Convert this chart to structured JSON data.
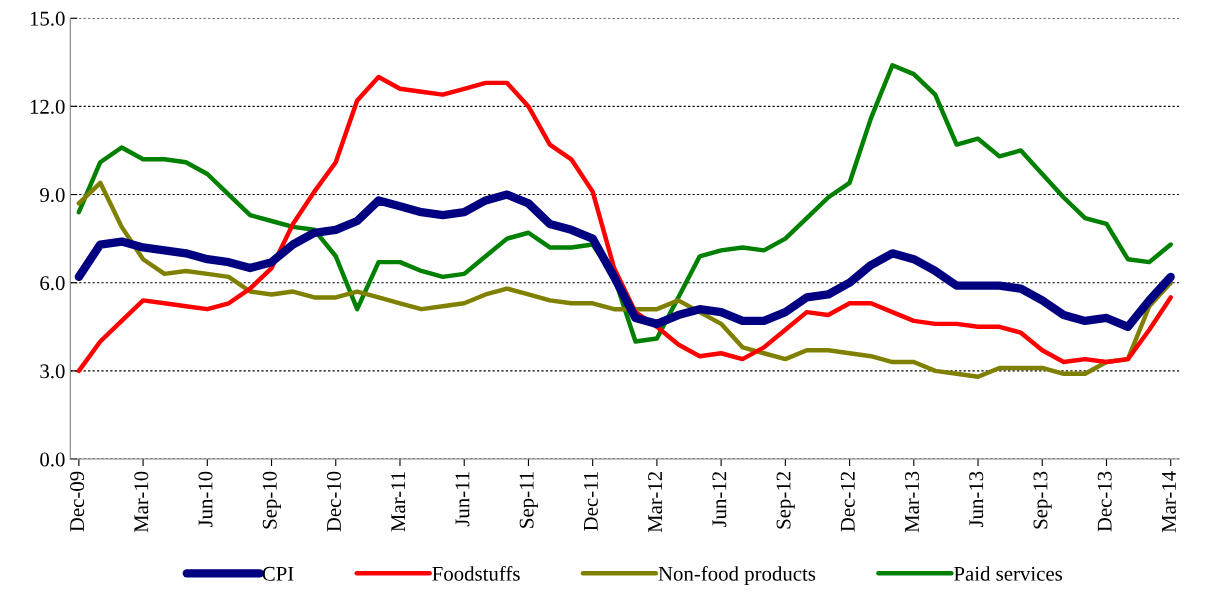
{
  "chart_data": {
    "type": "line",
    "categories": [
      "Dec-09",
      null,
      null,
      "Mar-10",
      null,
      null,
      "Jun-10",
      null,
      null,
      "Sep-10",
      null,
      null,
      "Dec-10",
      null,
      null,
      "Mar-11",
      null,
      null,
      "Jun-11",
      null,
      null,
      "Sep-11",
      null,
      null,
      "Dec-11",
      null,
      null,
      "Mar-12",
      null,
      null,
      "Jun-12",
      null,
      null,
      "Sep-12",
      null,
      null,
      "Dec-12",
      null,
      null,
      "Mar-13",
      null,
      null,
      "Jun-13",
      null,
      null,
      "Sep-13",
      null,
      null,
      "Dec-13",
      null,
      null,
      "Mar-14"
    ],
    "series": [
      {
        "name": "CPI",
        "color": "#000080",
        "values": [
          6.2,
          7.3,
          7.4,
          7.2,
          7.1,
          7.0,
          6.8,
          6.7,
          6.5,
          6.7,
          7.3,
          7.7,
          7.8,
          8.1,
          8.8,
          8.6,
          8.4,
          8.3,
          8.4,
          8.8,
          9.0,
          8.7,
          8.0,
          7.8,
          7.5,
          6.2,
          4.8,
          4.6,
          4.9,
          5.1,
          5.0,
          4.7,
          4.7,
          5.0,
          5.5,
          5.6,
          6.0,
          6.6,
          7.0,
          6.8,
          6.4,
          5.9,
          5.9,
          5.9,
          5.8,
          5.4,
          4.9,
          4.7,
          4.8,
          4.5,
          5.4,
          6.2
        ]
      },
      {
        "name": "Foodstuffs",
        "color": "#ff0000",
        "values": [
          3.0,
          4.0,
          4.7,
          5.4,
          5.3,
          5.2,
          5.1,
          5.3,
          5.8,
          6.5,
          8.0,
          9.1,
          10.1,
          12.2,
          13.0,
          12.6,
          12.5,
          12.4,
          12.6,
          12.8,
          12.8,
          12.0,
          10.7,
          10.2,
          9.1,
          6.5,
          5.0,
          4.5,
          3.9,
          3.5,
          3.6,
          3.4,
          3.8,
          4.4,
          5.0,
          4.9,
          5.3,
          5.3,
          5.0,
          4.7,
          4.6,
          4.6,
          4.5,
          4.5,
          4.3,
          3.7,
          3.3,
          3.4,
          3.3,
          3.4,
          4.4,
          5.5
        ]
      },
      {
        "name": "Non-food products",
        "color": "#808000",
        "values": [
          8.7,
          9.4,
          7.9,
          6.8,
          6.3,
          6.4,
          6.3,
          6.2,
          5.7,
          5.6,
          5.7,
          5.5,
          5.5,
          5.7,
          5.5,
          5.3,
          5.1,
          5.2,
          5.3,
          5.6,
          5.8,
          5.6,
          5.4,
          5.3,
          5.3,
          5.1,
          5.1,
          5.1,
          5.4,
          5.0,
          4.6,
          3.8,
          3.6,
          3.4,
          3.7,
          3.7,
          3.6,
          3.5,
          3.3,
          3.3,
          3.0,
          2.9,
          2.8,
          3.1,
          3.1,
          3.1,
          2.9,
          2.9,
          3.3,
          3.4,
          5.2,
          6.0
        ]
      },
      {
        "name": "Paid services",
        "color": "#008000",
        "values": [
          8.4,
          10.1,
          10.6,
          10.2,
          10.2,
          10.1,
          9.7,
          9.0,
          8.3,
          8.1,
          7.9,
          7.8,
          6.9,
          5.1,
          6.7,
          6.7,
          6.4,
          6.2,
          6.3,
          6.9,
          7.5,
          7.7,
          7.2,
          7.2,
          7.3,
          6.2,
          4.0,
          4.1,
          5.5,
          6.9,
          7.1,
          7.2,
          7.1,
          7.5,
          8.2,
          8.9,
          9.4,
          11.6,
          13.4,
          13.1,
          12.4,
          10.7,
          10.9,
          10.3,
          10.5,
          9.7,
          8.9,
          8.2,
          8.0,
          6.8,
          6.7,
          7.3
        ]
      }
    ],
    "ylim": [
      0,
      15
    ],
    "yticks": [
      {
        "value": 0,
        "label": "0.0"
      },
      {
        "value": 3,
        "label": "3.0"
      },
      {
        "value": 6,
        "label": "6.0"
      },
      {
        "value": 9,
        "label": "9.0"
      },
      {
        "value": 12,
        "label": "12.0"
      },
      {
        "value": 15,
        "label": "15.0"
      }
    ],
    "grid": "y",
    "legend": "bottom",
    "marker": "none",
    "line_style": "solid"
  }
}
